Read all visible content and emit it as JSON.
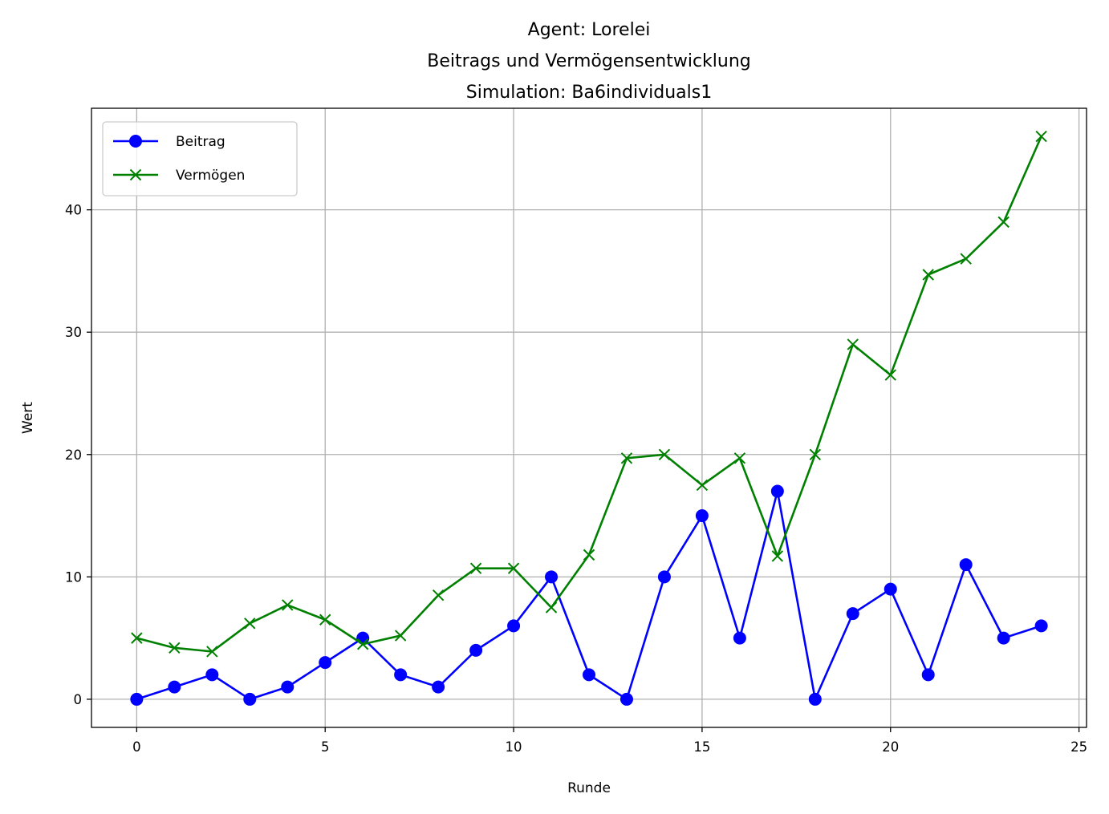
{
  "chart_data": {
    "type": "line",
    "title_lines": [
      "Agent: Lorelei",
      "Beitrags und Vermögensentwicklung",
      "Simulation: Ba6individuals1"
    ],
    "xlabel": "Runde",
    "ylabel": "Wert",
    "xlim": [
      -1.2,
      25.2
    ],
    "ylim": [
      -2.3,
      48.3
    ],
    "x_ticks": [
      0,
      5,
      10,
      15,
      20,
      25
    ],
    "y_ticks": [
      0,
      10,
      20,
      30,
      40
    ],
    "grid": true,
    "legend_position": "top-left",
    "x": [
      0,
      1,
      2,
      3,
      4,
      5,
      6,
      7,
      8,
      9,
      10,
      11,
      12,
      13,
      14,
      15,
      16,
      17,
      18,
      19,
      20,
      21,
      22,
      23,
      24
    ],
    "series": [
      {
        "name": "Beitrag",
        "color": "#0000ff",
        "marker": "circle",
        "values": [
          0,
          1,
          2,
          0,
          1,
          3,
          5,
          2,
          1,
          4,
          6,
          10,
          2,
          0,
          10,
          15,
          5,
          17,
          0,
          7,
          9,
          2,
          11,
          5,
          6
        ]
      },
      {
        "name": "Vermögen",
        "color": "#008000",
        "marker": "x",
        "values": [
          5,
          4.2,
          3.9,
          6.2,
          7.7,
          6.5,
          4.5,
          5.2,
          8.5,
          10.7,
          10.7,
          7.5,
          11.8,
          19.7,
          20,
          17.5,
          19.7,
          11.7,
          20,
          29,
          26.5,
          34.7,
          36,
          39,
          46
        ]
      }
    ]
  }
}
